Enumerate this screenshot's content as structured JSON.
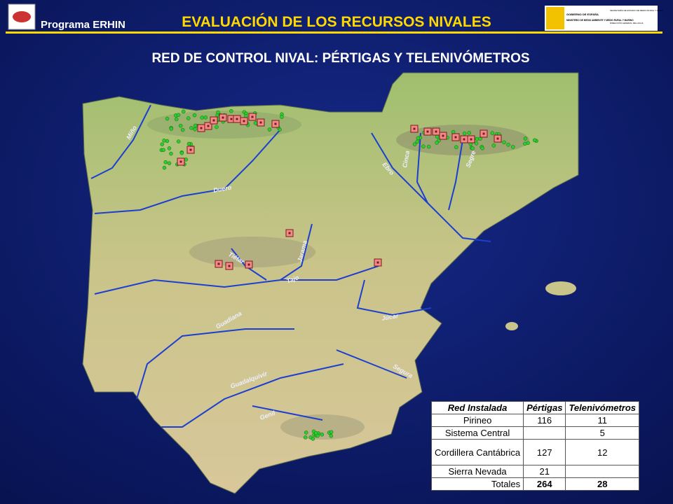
{
  "header": {
    "program": "Programa ERHIN",
    "title": "EVALUACIÓN DE LOS RECURSOS NIVALES",
    "ministry_logo": [
      "GOBIERNO DE ESPAÑA",
      "MINISTERIO DE MEDIO AMBIENTE Y MEDIO RURAL Y MARINO",
      "SECRETARÍA DE ESTADO DE MEDIO RURAL Y AGUA",
      "DIRECCIÓN GENERAL DEL AGUA"
    ]
  },
  "subtitle": "RED DE CONTROL NIVAL: PÉRTIGAS Y TELENIVÓMETROS",
  "map": {
    "rivers": [
      "Miño",
      "Duero",
      "Ebro",
      "Cinca",
      "Segre",
      "Jarama",
      "Tiétar",
      "Tajo",
      "Guadiana",
      "Júcar",
      "Segura",
      "Guadalquivir",
      "Genil"
    ]
  },
  "table": {
    "header": [
      "Red Instalada",
      "Pértigas",
      "Telenivómetros"
    ],
    "rows": [
      [
        "Pirineo",
        116,
        11
      ],
      [
        "Sistema Central",
        null,
        5
      ],
      [
        "Cordillera Cantábrica",
        127,
        12
      ],
      [
        "Sierra Nevada",
        21,
        null
      ],
      [
        "Totales",
        264,
        28
      ]
    ]
  }
}
